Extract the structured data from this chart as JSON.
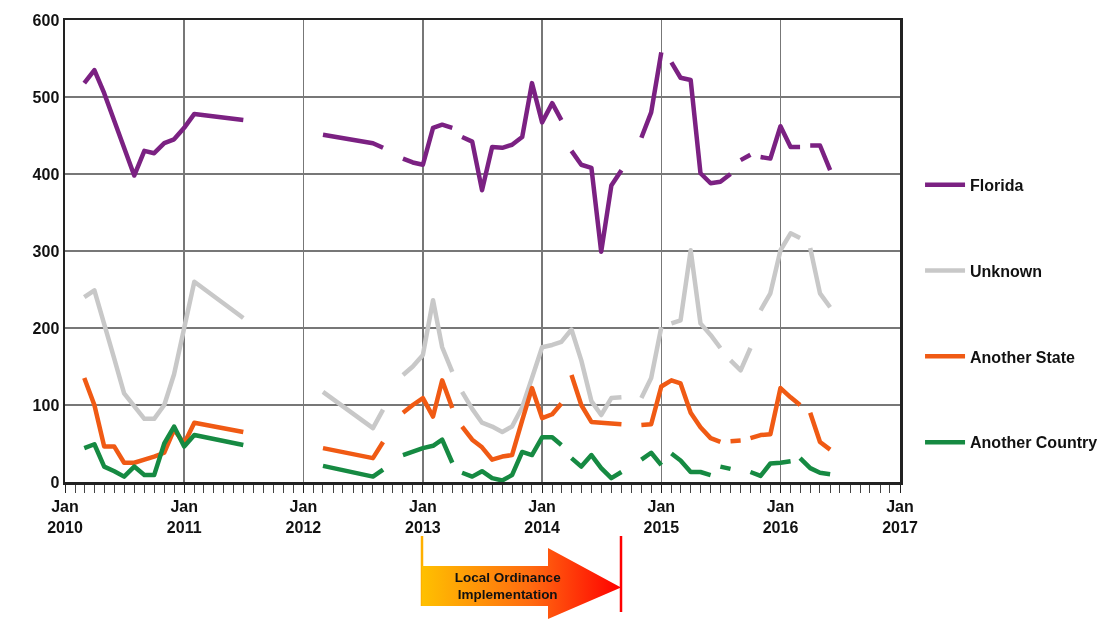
{
  "chart_data": {
    "type": "line",
    "legend": "right",
    "grid": true,
    "line_style": "solid",
    "marker": "none",
    "xlim": [
      "2010-01",
      "2017-01"
    ],
    "xticks": [
      {
        "value": "2010-01",
        "label": "Jan\n2010"
      },
      {
        "value": "2011-01",
        "label": "Jan\n2011"
      },
      {
        "value": "2012-01",
        "label": "Jan\n2012"
      },
      {
        "value": "2013-01",
        "label": "Jan\n2013"
      },
      {
        "value": "2014-01",
        "label": "Jan\n2014"
      },
      {
        "value": "2015-01",
        "label": "Jan\n2015"
      },
      {
        "value": "2016-01",
        "label": "Jan\n2016"
      },
      {
        "value": "2017-01",
        "label": "Jan\n2017"
      }
    ],
    "ylim": [
      0,
      600
    ],
    "yticks": [
      0,
      100,
      200,
      300,
      400,
      500,
      600
    ],
    "annotations": [
      "Local Ordinance Implementation"
    ],
    "series": [
      {
        "name": "Florida",
        "color": "#7b2182",
        "x": [
          "2010-03",
          "2010-04",
          "2010-05",
          "2010-08",
          "2010-09",
          "2010-10",
          "2010-11",
          "2010-12",
          "2011-01",
          "2011-02",
          "2011-07",
          "2011-10",
          "2012-03",
          "2012-08",
          "2012-09",
          "2012-10",
          "2012-11",
          "2012-12",
          "2013-01",
          "2013-02",
          "2013-03",
          "2013-04",
          "2013-04-15",
          "2013-05",
          "2013-06",
          "2013-07",
          "2013-08",
          "2013-09",
          "2013-10",
          "2013-11",
          "2013-12",
          "2014-01",
          "2014-02",
          "2014-03",
          "2014-03-15",
          "2014-04",
          "2014-05",
          "2014-06",
          "2014-07",
          "2014-08",
          "2014-09",
          "2014-10",
          "2014-11",
          "2014-12",
          "2015-01",
          "2015-01-15",
          "2015-02",
          "2015-03",
          "2015-04",
          "2015-05",
          "2015-06",
          "2015-07",
          "2015-08",
          "2015-08-15",
          "2015-09",
          "2015-10",
          "2015-10-15",
          "2015-11",
          "2015-12",
          "2016-01",
          "2016-02",
          "2016-03",
          "2016-03-15",
          "2016-04",
          "2016-05",
          "2016-06"
        ],
        "values": [
          518,
          535,
          505,
          398,
          430,
          427,
          440,
          445,
          460,
          478,
          470,
          null,
          451,
          440,
          434,
          null,
          420,
          415,
          412,
          460,
          464,
          460,
          null,
          448,
          442,
          379,
          435,
          434,
          438,
          448,
          518,
          467,
          492,
          470,
          null,
          430,
          412,
          408,
          299,
          385,
          405,
          null,
          447,
          480,
          558,
          null,
          545,
          525,
          522,
          401,
          388,
          390,
          400,
          null,
          418,
          425,
          null,
          422,
          420,
          462,
          435,
          435,
          null,
          437,
          437,
          405
        ]
      },
      {
        "name": "Unknown",
        "color": "#c8c8c8",
        "x": [
          "2010-03",
          "2010-04",
          "2010-06",
          "2010-07",
          "2010-09",
          "2010-10",
          "2010-11",
          "2010-12",
          "2011-01",
          "2011-02",
          "2011-07",
          "2011-10",
          "2012-03",
          "2012-08",
          "2012-09",
          "2012-10",
          "2012-11",
          "2012-12",
          "2013-01",
          "2013-02",
          "2013-03",
          "2013-04",
          "2013-04-15",
          "2013-05",
          "2013-06",
          "2013-07",
          "2013-08",
          "2013-09",
          "2013-10",
          "2013-11",
          "2013-12",
          "2014-01",
          "2014-02",
          "2014-03",
          "2014-04",
          "2014-05",
          "2014-06",
          "2014-07",
          "2014-08",
          "2014-09",
          "2014-10",
          "2014-11",
          "2014-12",
          "2015-01",
          "2015-01-15",
          "2015-02",
          "2015-03",
          "2015-04",
          "2015-05",
          "2015-06",
          "2015-07",
          "2015-07-15",
          "2015-08",
          "2015-09",
          "2015-10",
          "2015-10-15",
          "2015-11",
          "2015-12",
          "2016-01",
          "2016-02",
          "2016-03",
          "2016-03-15",
          "2016-04",
          "2016-05",
          "2016-06"
        ],
        "values": [
          240,
          249,
          160,
          115,
          82,
          82,
          100,
          140,
          200,
          260,
          213,
          null,
          117,
          70,
          94,
          null,
          139,
          150,
          165,
          236,
          175,
          143,
          null,
          117,
          95,
          77,
          72,
          65,
          72,
          97,
          135,
          175,
          178,
          182,
          198,
          158,
          105,
          87,
          109,
          110,
          null,
          109,
          135,
          201,
          null,
          206,
          210,
          301,
          206,
          191,
          174,
          null,
          158,
          145,
          174,
          null,
          223,
          245,
          301,
          323,
          317,
          null,
          304,
          245,
          227
        ]
      },
      {
        "name": "Another State",
        "color": "#f05a14",
        "x": [
          "2010-03",
          "2010-04",
          "2010-05",
          "2010-06",
          "2010-07",
          "2010-08",
          "2010-09",
          "2010-10",
          "2010-11",
          "2010-12",
          "2011-01",
          "2011-02",
          "2011-07",
          "2011-10",
          "2012-03",
          "2012-08",
          "2012-09",
          "2012-10",
          "2012-11",
          "2012-12",
          "2013-01",
          "2013-02",
          "2013-03",
          "2013-04",
          "2013-04-15",
          "2013-05",
          "2013-06",
          "2013-07",
          "2013-08",
          "2013-09",
          "2013-10",
          "2013-11",
          "2013-12",
          "2014-01",
          "2014-02",
          "2014-03",
          "2014-03-15",
          "2014-04",
          "2014-05",
          "2014-06",
          "2014-07",
          "2014-08",
          "2014-09",
          "2014-10",
          "2014-11",
          "2014-12",
          "2015-01",
          "2015-02",
          "2015-03",
          "2015-04",
          "2015-05",
          "2015-06",
          "2015-07",
          "2015-07-15",
          "2015-08",
          "2015-09",
          "2015-09-15",
          "2015-10",
          "2015-11",
          "2015-12",
          "2016-01",
          "2016-02",
          "2016-03",
          "2016-03-15",
          "2016-04",
          "2016-05",
          "2016-06"
        ],
        "values": [
          135,
          100,
          46,
          46,
          25,
          25,
          29,
          33,
          38,
          68,
          50,
          77,
          65,
          null,
          44,
          31,
          52,
          null,
          90,
          100,
          109,
          85,
          132,
          96,
          null,
          72,
          55,
          45,
          29,
          33,
          35,
          80,
          122,
          83,
          88,
          102,
          null,
          139,
          100,
          78,
          77,
          76,
          75,
          null,
          74,
          75,
          124,
          132,
          128,
          90,
          71,
          57,
          52,
          null,
          53,
          54,
          null,
          57,
          61,
          62,
          122,
          110,
          100,
          null,
          90,
          52,
          42
        ]
      },
      {
        "name": "Another Country",
        "color": "#168a42",
        "x": [
          "2010-03",
          "2010-04",
          "2010-05",
          "2010-06",
          "2010-07",
          "2010-08",
          "2010-09",
          "2010-10",
          "2010-11",
          "2010-12",
          "2011-01",
          "2011-02",
          "2011-07",
          "2011-10",
          "2012-03",
          "2012-08",
          "2012-09",
          "2012-10",
          "2012-11",
          "2013-01",
          "2013-02",
          "2013-03",
          "2013-04",
          "2013-04-15",
          "2013-05",
          "2013-06",
          "2013-07",
          "2013-08",
          "2013-09",
          "2013-10",
          "2013-11",
          "2013-12",
          "2014-01",
          "2014-02",
          "2014-03",
          "2014-03-15",
          "2014-04",
          "2014-05",
          "2014-06",
          "2014-07",
          "2014-08",
          "2014-09",
          "2014-10",
          "2014-11",
          "2014-12",
          "2015-01",
          "2015-01-15",
          "2015-02",
          "2015-03",
          "2015-04",
          "2015-05",
          "2015-06",
          "2015-06-15",
          "2015-07",
          "2015-08",
          "2015-08-15",
          "2015-10",
          "2015-11",
          "2015-12",
          "2016-01",
          "2016-02",
          "2016-02-15",
          "2016-03",
          "2016-04",
          "2016-05",
          "2016-06"
        ],
        "values": [
          44,
          49,
          20,
          14,
          7,
          20,
          9,
          9,
          50,
          72,
          46,
          61,
          48,
          null,
          21,
          7,
          16,
          null,
          35,
          44,
          47,
          55,
          25,
          null,
          12,
          7,
          14,
          5,
          2,
          9,
          39,
          35,
          58,
          58,
          48,
          null,
          31,
          20,
          35,
          18,
          5,
          13,
          null,
          29,
          38,
          22,
          null,
          37,
          28,
          13,
          13,
          9,
          null,
          20,
          17,
          null,
          13,
          8,
          24,
          25,
          27,
          null,
          31,
          18,
          12,
          10
        ]
      }
    ]
  }
}
